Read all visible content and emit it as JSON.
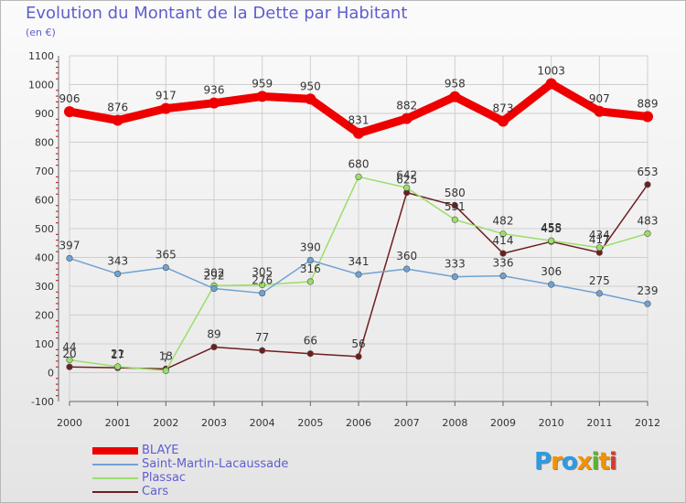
{
  "title": "Evolution du Montant de la Dette par Habitant",
  "subtitle": "(en €)",
  "logo": {
    "text": "Proxiti",
    "letter_colors": [
      "#2f9ae0",
      "#f39200",
      "#2f9ae0",
      "#f39200",
      "#5fb230",
      "#f39200",
      "#d63a2f"
    ]
  },
  "chart_data": {
    "type": "line",
    "categories": [
      "2000",
      "2001",
      "2002",
      "2003",
      "2004",
      "2005",
      "2006",
      "2007",
      "2008",
      "2009",
      "2010",
      "2011",
      "2012"
    ],
    "ylim": [
      -100,
      1100
    ],
    "yticks": [
      -100,
      0,
      100,
      200,
      300,
      400,
      500,
      600,
      700,
      800,
      900,
      1000,
      1100
    ],
    "grid": true,
    "legend_position": "bottom-left",
    "series": [
      {
        "name": "BLAYE",
        "color": "#ee0000",
        "emphasis": true,
        "values": [
          906,
          876,
          917,
          936,
          959,
          950,
          831,
          882,
          958,
          873,
          1003,
          907,
          889
        ]
      },
      {
        "name": "Saint-Martin-Lacaussade",
        "color": "#6fa2d4",
        "values": [
          397,
          343,
          365,
          292,
          276,
          390,
          341,
          360,
          333,
          336,
          306,
          275,
          239
        ]
      },
      {
        "name": "Plassac",
        "color": "#9ade68",
        "values": [
          44,
          21,
          7,
          302,
          305,
          316,
          680,
          642,
          531,
          482,
          458,
          434,
          483
        ]
      },
      {
        "name": "Cars",
        "color": "#6e1e1e",
        "values": [
          20,
          17,
          13,
          89,
          77,
          66,
          56,
          625,
          580,
          414,
          455,
          417,
          653
        ]
      }
    ]
  }
}
